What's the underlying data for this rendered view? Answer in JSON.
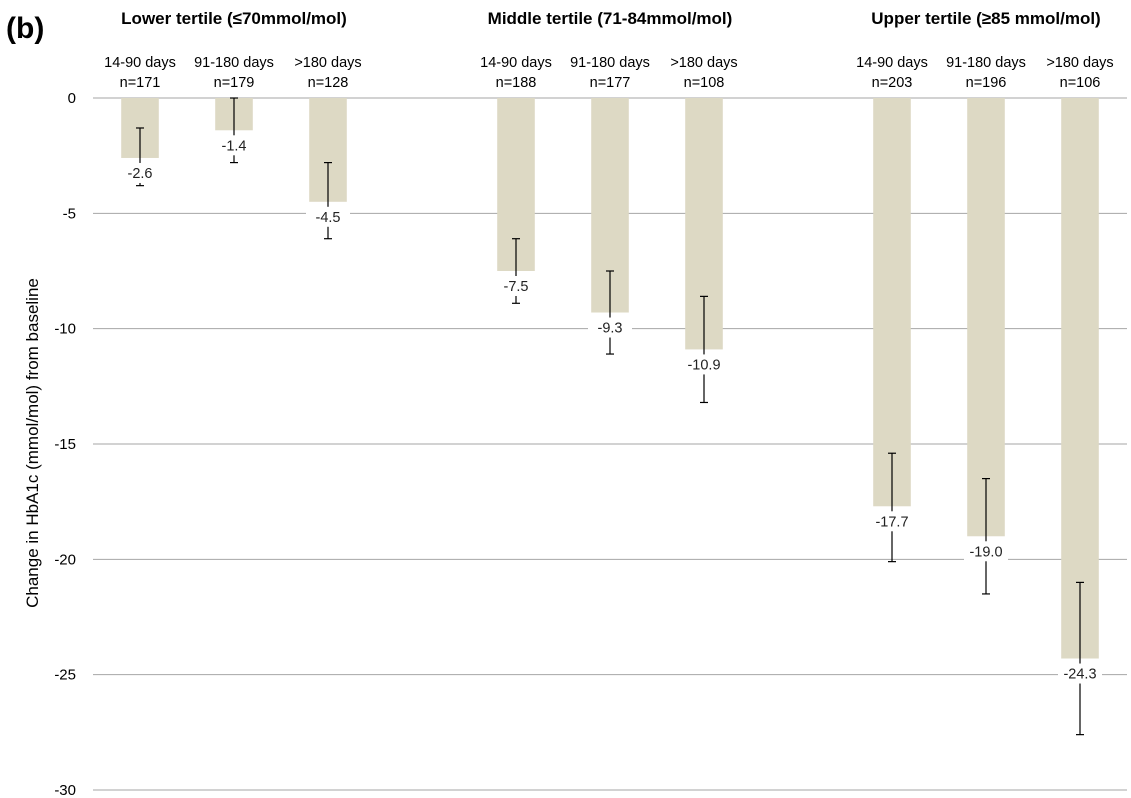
{
  "chart_data": {
    "type": "bar",
    "panel_label": "(b)",
    "ylabel": "Change in HbA1c (mmol/mol) from baseline",
    "ylim": [
      -30,
      0
    ],
    "yticks": [
      0,
      -5,
      -10,
      -15,
      -20,
      -25,
      -30
    ],
    "grid": true,
    "colors": {
      "bar": "#ddd9c4",
      "grid": "#a6a6a6",
      "error_bar": "#000000"
    },
    "groups": [
      {
        "title": "Lower tertile (≤70mmol/mol)",
        "categories": [
          {
            "label": "14-90 days",
            "n": "n=171",
            "value": -2.6,
            "value_label": "-2.6",
            "error_low": -3.8,
            "error_high": -1.3
          },
          {
            "label": "91-180 days",
            "n": "n=179",
            "value": -1.4,
            "value_label": "-1.4",
            "error_low": -2.8,
            "error_high": 0.0
          },
          {
            "label": ">180 days",
            "n": "n=128",
            "value": -4.5,
            "value_label": "-4.5",
            "error_low": -6.1,
            "error_high": -2.8
          }
        ]
      },
      {
        "title": "Middle tertile (71-84mmol/mol)",
        "categories": [
          {
            "label": "14-90 days",
            "n": "n=188",
            "value": -7.5,
            "value_label": "-7.5",
            "error_low": -8.9,
            "error_high": -6.1
          },
          {
            "label": "91-180 days",
            "n": "n=177",
            "value": -9.3,
            "value_label": "-9.3",
            "error_low": -11.1,
            "error_high": -7.5
          },
          {
            "label": ">180 days",
            "n": "n=108",
            "value": -10.9,
            "value_label": "-10.9",
            "error_low": -13.2,
            "error_high": -8.6
          }
        ]
      },
      {
        "title": "Upper tertile (≥85 mmol/mol)",
        "categories": [
          {
            "label": "14-90 days",
            "n": "n=203",
            "value": -17.7,
            "value_label": "-17.7",
            "error_low": -20.1,
            "error_high": -15.4
          },
          {
            "label": "91-180 days",
            "n": "n=196",
            "value": -19.0,
            "value_label": "-19.0",
            "error_low": -21.5,
            "error_high": -16.5
          },
          {
            "label": ">180 days",
            "n": "n=106",
            "value": -24.3,
            "value_label": "-24.3",
            "error_low": -27.6,
            "error_high": -21.0
          }
        ]
      }
    ]
  }
}
